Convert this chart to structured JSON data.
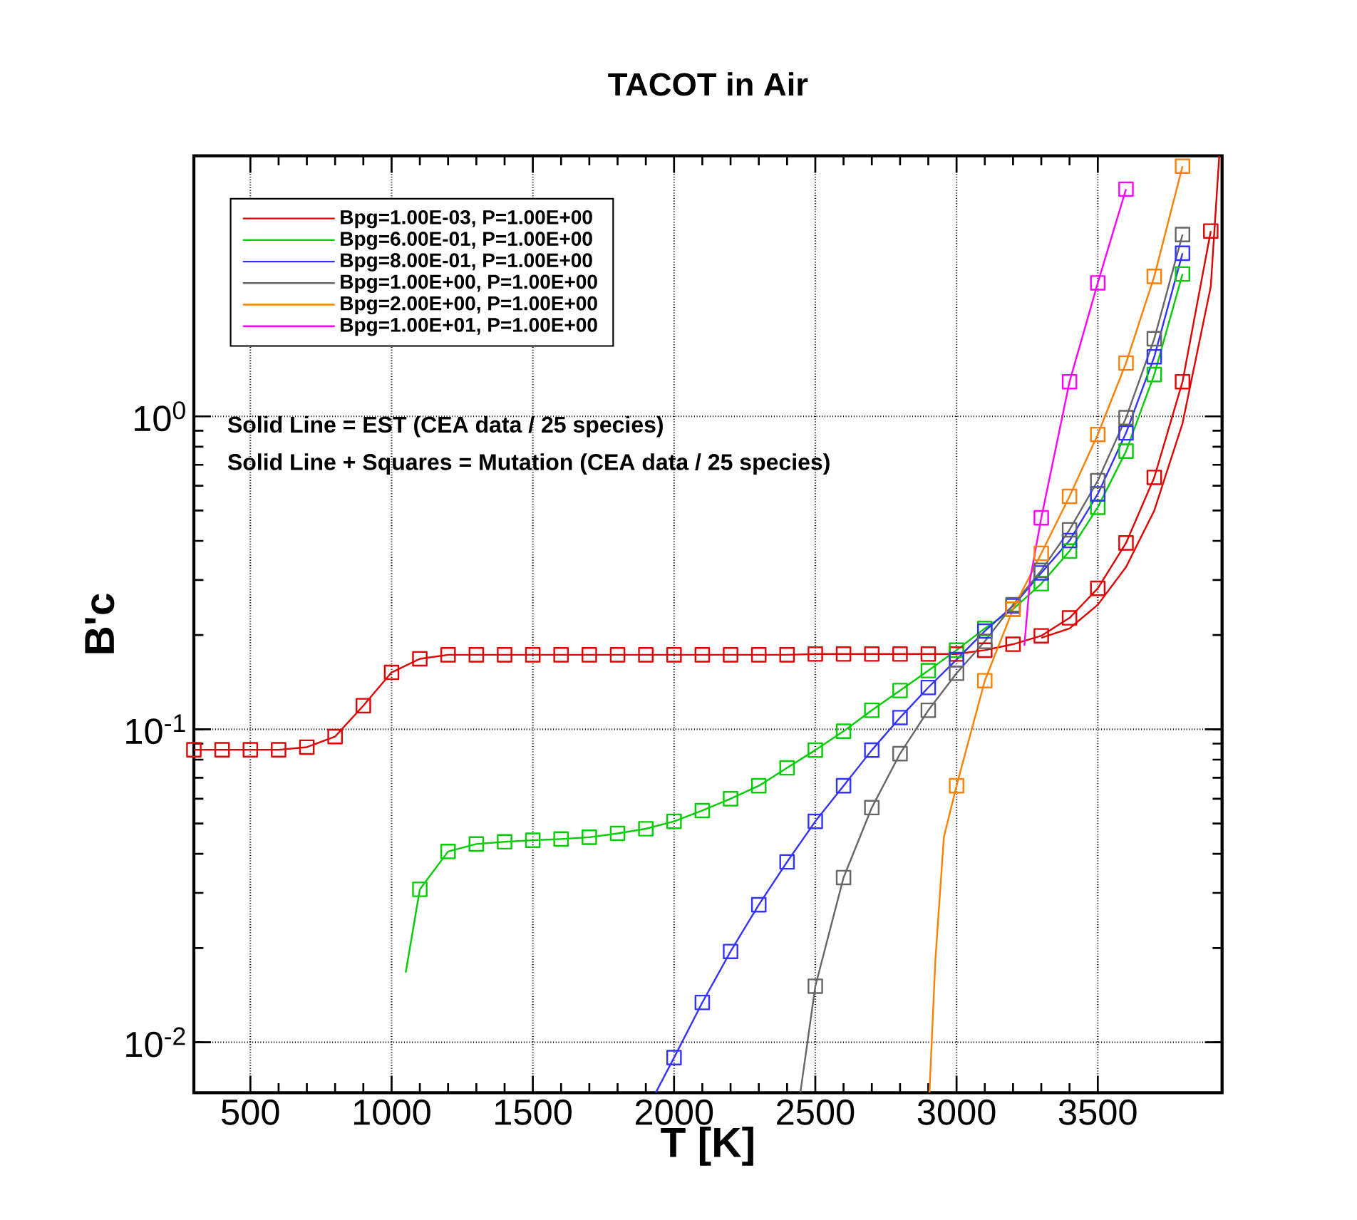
{
  "chart_data": {
    "type": "line",
    "title": "TACOT in Air",
    "xlabel": "T [K]",
    "ylabel": "B'c",
    "log": "y",
    "grid": true,
    "legend": "top left",
    "xlim": [
      300,
      3940
    ],
    "ylim": [
      0.0069,
      6.8
    ],
    "xticks": [
      500,
      1000,
      1500,
      2000,
      2500,
      3000,
      3500
    ],
    "yticks": [
      {
        "value": 0.01,
        "label": "10$^{-2}$"
      },
      {
        "value": 0.1,
        "label": "10$^{-1}$"
      },
      {
        "value": 1,
        "label": "10$^{0}$"
      }
    ],
    "annotations": [
      "Solid Line = EST (CEA data / 25 species)",
      "Solid Line + Squares = Mutation (CEA data / 25 species)"
    ],
    "series": [
      {
        "name": "Bpg=1.00E-03, P=1.00E+00",
        "color": "#e00000",
        "marker": "square",
        "x": [
          300,
          400,
          500,
          600,
          700,
          800,
          900,
          1000,
          1100,
          1200,
          1300,
          1400,
          1500,
          1600,
          1700,
          1800,
          1900,
          2000,
          2100,
          2200,
          2300,
          2400,
          2500,
          2600,
          2700,
          2800,
          2900,
          3000,
          3100,
          3200,
          3300,
          3400,
          3500,
          3600,
          3700,
          3800,
          3900
        ],
        "values": [
          0.086,
          0.086,
          0.086,
          0.086,
          0.0877,
          0.0948,
          0.119,
          0.152,
          0.168,
          0.173,
          0.173,
          0.173,
          0.173,
          0.173,
          0.173,
          0.173,
          0.173,
          0.173,
          0.173,
          0.173,
          0.173,
          0.173,
          0.174,
          0.174,
          0.174,
          0.174,
          0.174,
          0.174,
          0.179,
          0.187,
          0.199,
          0.227,
          0.282,
          0.394,
          0.638,
          1.29,
          3.91
        ]
      },
      {
        "name": "Bpg=6.00E-01, P=1.00E+00",
        "color": "#00cc00",
        "marker": "square",
        "x": [
          1100,
          1200,
          1300,
          1400,
          1500,
          1600,
          1700,
          1800,
          1900,
          2000,
          2100,
          2200,
          2300,
          2400,
          2500,
          2600,
          2700,
          2800,
          2900,
          3000,
          3100,
          3200,
          3300,
          3400,
          3500,
          3600,
          3700,
          3800
        ],
        "values": [
          0.0308,
          0.0407,
          0.043,
          0.0437,
          0.0442,
          0.0446,
          0.0452,
          0.0465,
          0.0481,
          0.0508,
          0.055,
          0.06,
          0.066,
          0.0753,
          0.0858,
          0.0986,
          0.115,
          0.133,
          0.154,
          0.179,
          0.21,
          0.242,
          0.292,
          0.371,
          0.512,
          0.774,
          1.36,
          2.85
        ]
      },
      {
        "name": "Bpg=8.00E-01, P=1.00E+00",
        "color": "#3333ff",
        "marker": "square",
        "x": [
          2000,
          2100,
          2200,
          2300,
          2400,
          2500,
          2600,
          2700,
          2800,
          2900,
          3000,
          3100,
          3200,
          3300,
          3400,
          3500,
          3600,
          3700,
          3800
        ],
        "values": [
          0.00893,
          0.0134,
          0.0195,
          0.0275,
          0.0377,
          0.0508,
          0.066,
          0.0858,
          0.109,
          0.136,
          0.167,
          0.206,
          0.248,
          0.316,
          0.401,
          0.565,
          0.885,
          1.55,
          3.32
        ]
      },
      {
        "name": "Bpg=1.00E+00, P=1.00E+00",
        "color": "#666666",
        "marker": "square",
        "x": [
          2500,
          2600,
          2700,
          2800,
          2900,
          3000,
          3100,
          3200,
          3300,
          3400,
          3500,
          3600,
          3700,
          3800
        ],
        "values": [
          0.0151,
          0.0336,
          0.0562,
          0.0836,
          0.115,
          0.151,
          0.191,
          0.25,
          0.322,
          0.434,
          0.623,
          0.99,
          1.77,
          3.81
        ]
      },
      {
        "name": "Bpg=2.00E+00, P=1.00E+00",
        "color": "#ff8000",
        "marker": "square",
        "x": [
          3000,
          3100,
          3200,
          3300,
          3400,
          3500,
          3600,
          3700,
          3800
        ],
        "values": [
          0.066,
          0.143,
          0.242,
          0.365,
          0.555,
          0.875,
          1.48,
          2.8,
          6.3
        ]
      },
      {
        "name": "Bpg=1.00E+01, P=1.00E+00",
        "color": "#ff00ff",
        "marker": "square",
        "x": [
          3300,
          3400,
          3500,
          3600
        ],
        "values": [
          0.474,
          1.29,
          2.67,
          5.32
        ]
      },
      {
        "color": "#e00000",
        "marker": "none",
        "x": [
          3300,
          3400,
          3500,
          3600,
          3700,
          3800,
          3900,
          3930
        ],
        "values": [
          0.196,
          0.21,
          0.25,
          0.33,
          0.5,
          0.95,
          2.6,
          6.8
        ]
      },
      {
        "color": "#00cc00",
        "marker": "none",
        "x": [
          1050,
          1100
        ],
        "values": [
          0.0167,
          0.0308
        ]
      },
      {
        "color": "#3333ff",
        "marker": "none",
        "x": [
          1935,
          2000
        ],
        "values": [
          0.0069,
          0.00893
        ]
      },
      {
        "color": "#666666",
        "marker": "none",
        "x": [
          2447,
          2500
        ],
        "values": [
          0.0069,
          0.0151
        ]
      },
      {
        "color": "#ff8000",
        "marker": "none",
        "x": [
          2904,
          2925,
          2955,
          3000
        ],
        "values": [
          0.0069,
          0.0183,
          0.0452,
          0.066
        ]
      },
      {
        "color": "#ff00ff",
        "marker": "none",
        "x": [
          3240,
          3260,
          3300
        ],
        "values": [
          0.185,
          0.3,
          0.474
        ]
      }
    ]
  }
}
